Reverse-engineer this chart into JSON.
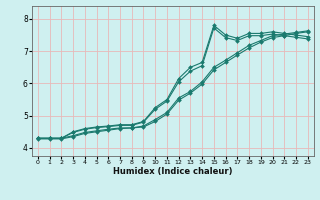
{
  "title": "",
  "xlabel": "Humidex (Indice chaleur)",
  "bg_color": "#cff0f0",
  "line_color": "#1a7a6e",
  "grid_color": "#e8b8b8",
  "xlim": [
    -0.5,
    23.5
  ],
  "ylim": [
    3.75,
    8.4
  ],
  "yticks": [
    4,
    5,
    6,
    7,
    8
  ],
  "xticks": [
    0,
    1,
    2,
    3,
    4,
    5,
    6,
    7,
    8,
    9,
    10,
    11,
    12,
    13,
    14,
    15,
    16,
    17,
    18,
    19,
    20,
    21,
    22,
    23
  ],
  "lines": [
    {
      "x": [
        0,
        1,
        2,
        3,
        4,
        5,
        6,
        7,
        8,
        9,
        10,
        11,
        12,
        13,
        14,
        15,
        16,
        17,
        18,
        19,
        20,
        21,
        22,
        23
      ],
      "y": [
        4.3,
        4.3,
        4.3,
        4.5,
        4.6,
        4.65,
        4.68,
        4.72,
        4.72,
        4.82,
        5.25,
        5.5,
        6.15,
        6.5,
        6.65,
        7.8,
        7.5,
        7.4,
        7.55,
        7.55,
        7.6,
        7.55,
        7.5,
        7.45
      ]
    },
    {
      "x": [
        0,
        1,
        2,
        3,
        4,
        5,
        6,
        7,
        8,
        9,
        10,
        11,
        12,
        13,
        14,
        15,
        16,
        17,
        18,
        19,
        20,
        21,
        22,
        23
      ],
      "y": [
        4.3,
        4.3,
        4.3,
        4.48,
        4.58,
        4.63,
        4.66,
        4.7,
        4.7,
        4.8,
        5.2,
        5.45,
        6.05,
        6.38,
        6.55,
        7.72,
        7.42,
        7.33,
        7.48,
        7.48,
        7.53,
        7.48,
        7.43,
        7.38
      ]
    },
    {
      "x": [
        0,
        1,
        2,
        3,
        4,
        5,
        6,
        7,
        8,
        9,
        10,
        11,
        12,
        13,
        14,
        15,
        16,
        17,
        18,
        19,
        20,
        21,
        22,
        23
      ],
      "y": [
        4.3,
        4.3,
        4.3,
        4.38,
        4.48,
        4.53,
        4.58,
        4.62,
        4.62,
        4.68,
        4.88,
        5.1,
        5.55,
        5.75,
        6.05,
        6.5,
        6.72,
        6.95,
        7.18,
        7.33,
        7.48,
        7.53,
        7.58,
        7.63
      ]
    },
    {
      "x": [
        0,
        1,
        2,
        3,
        4,
        5,
        6,
        7,
        8,
        9,
        10,
        11,
        12,
        13,
        14,
        15,
        16,
        17,
        18,
        19,
        20,
        21,
        22,
        23
      ],
      "y": [
        4.28,
        4.28,
        4.28,
        4.35,
        4.45,
        4.5,
        4.55,
        4.6,
        4.62,
        4.65,
        4.82,
        5.05,
        5.48,
        5.7,
        5.98,
        6.42,
        6.65,
        6.88,
        7.1,
        7.28,
        7.42,
        7.48,
        7.55,
        7.6
      ]
    }
  ]
}
